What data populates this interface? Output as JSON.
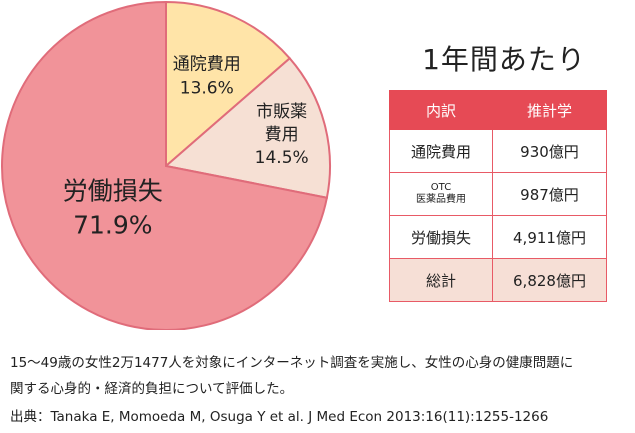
{
  "chart_data": {
    "type": "pie",
    "slices": [
      {
        "label_lines": [
          "通院費用",
          "13.6%"
        ],
        "value": 13.6,
        "color": "#ffe4a8"
      },
      {
        "label_lines": [
          "市販薬",
          "費用",
          "14.5%"
        ],
        "value": 14.5,
        "color": "#f6e0d4"
      },
      {
        "label_lines": [
          "労働損失",
          "71.9%"
        ],
        "value": 71.9,
        "color": "#f19399"
      }
    ]
  },
  "table": {
    "title": "1年間あたり",
    "headers": [
      "内訳",
      "推計学"
    ],
    "rows": [
      {
        "item": "通院費用",
        "value": "930億円"
      },
      {
        "item_lines": [
          "OTC",
          "医薬品費用"
        ],
        "value": "987億円"
      },
      {
        "item": "労働損失",
        "value": "4,911億円"
      },
      {
        "item": "総計",
        "value": "6,828億円"
      }
    ]
  },
  "notes": {
    "line1": "15〜49歳の女性2万1477人を対象にインターネット調査を実施し、女性の心身の健康問題に",
    "line2": "関する心身的・経済的負担について評価した。",
    "source": "出典：Tanaka E, Momoeda M, Osuga Y et al. J Med Econ 2013:16(11):1255-1266"
  }
}
